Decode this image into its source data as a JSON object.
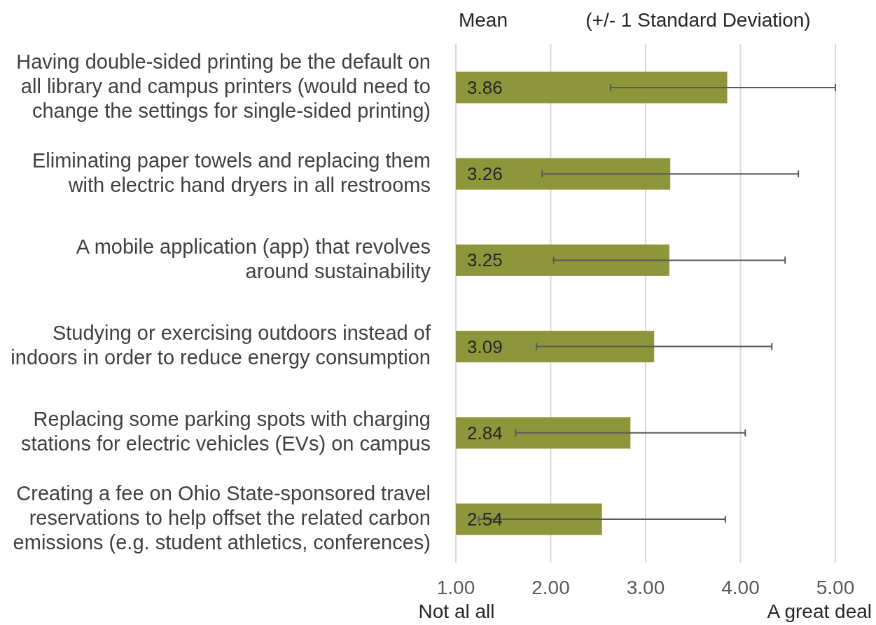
{
  "chart_data": {
    "type": "bar",
    "orientation": "horizontal",
    "categories": [
      "Having double-sided printing be the default on all library and campus printers (would need to change the settings for single-sided printing)",
      "Eliminating paper towels and replacing them with electric hand dryers in all restrooms",
      "A mobile application (app) that revolves around sustainability",
      "Studying or exercising outdoors instead of indoors in order to reduce energy consumption",
      "Replacing some parking spots with charging stations for electric vehicles (EVs) on campus",
      "Creating a fee on Ohio State-sponsored travel reservations to help offset the related carbon emissions (e.g. student athletics, conferences)"
    ],
    "values": [
      3.86,
      3.26,
      3.25,
      3.09,
      2.84,
      2.54
    ],
    "errors": [
      [
        2.63,
        5
      ],
      1.35,
      1.22,
      1.24,
      1.21,
      1.3
    ],
    "color": "#8d963a",
    "xlim": [
      1,
      5
    ],
    "xticks": [
      {
        "value": 1,
        "label": "1.00"
      },
      {
        "value": 2,
        "label": "2.00"
      },
      {
        "value": 3,
        "label": "3.00"
      },
      {
        "value": 4,
        "label": "4.00"
      },
      {
        "value": 5,
        "label": "5.00"
      }
    ],
    "grid": "x",
    "data_labels": true,
    "annotations": [
      "Mean",
      "(+/- 1 Standard Deviation)",
      "Not al all",
      "A great deal"
    ]
  }
}
